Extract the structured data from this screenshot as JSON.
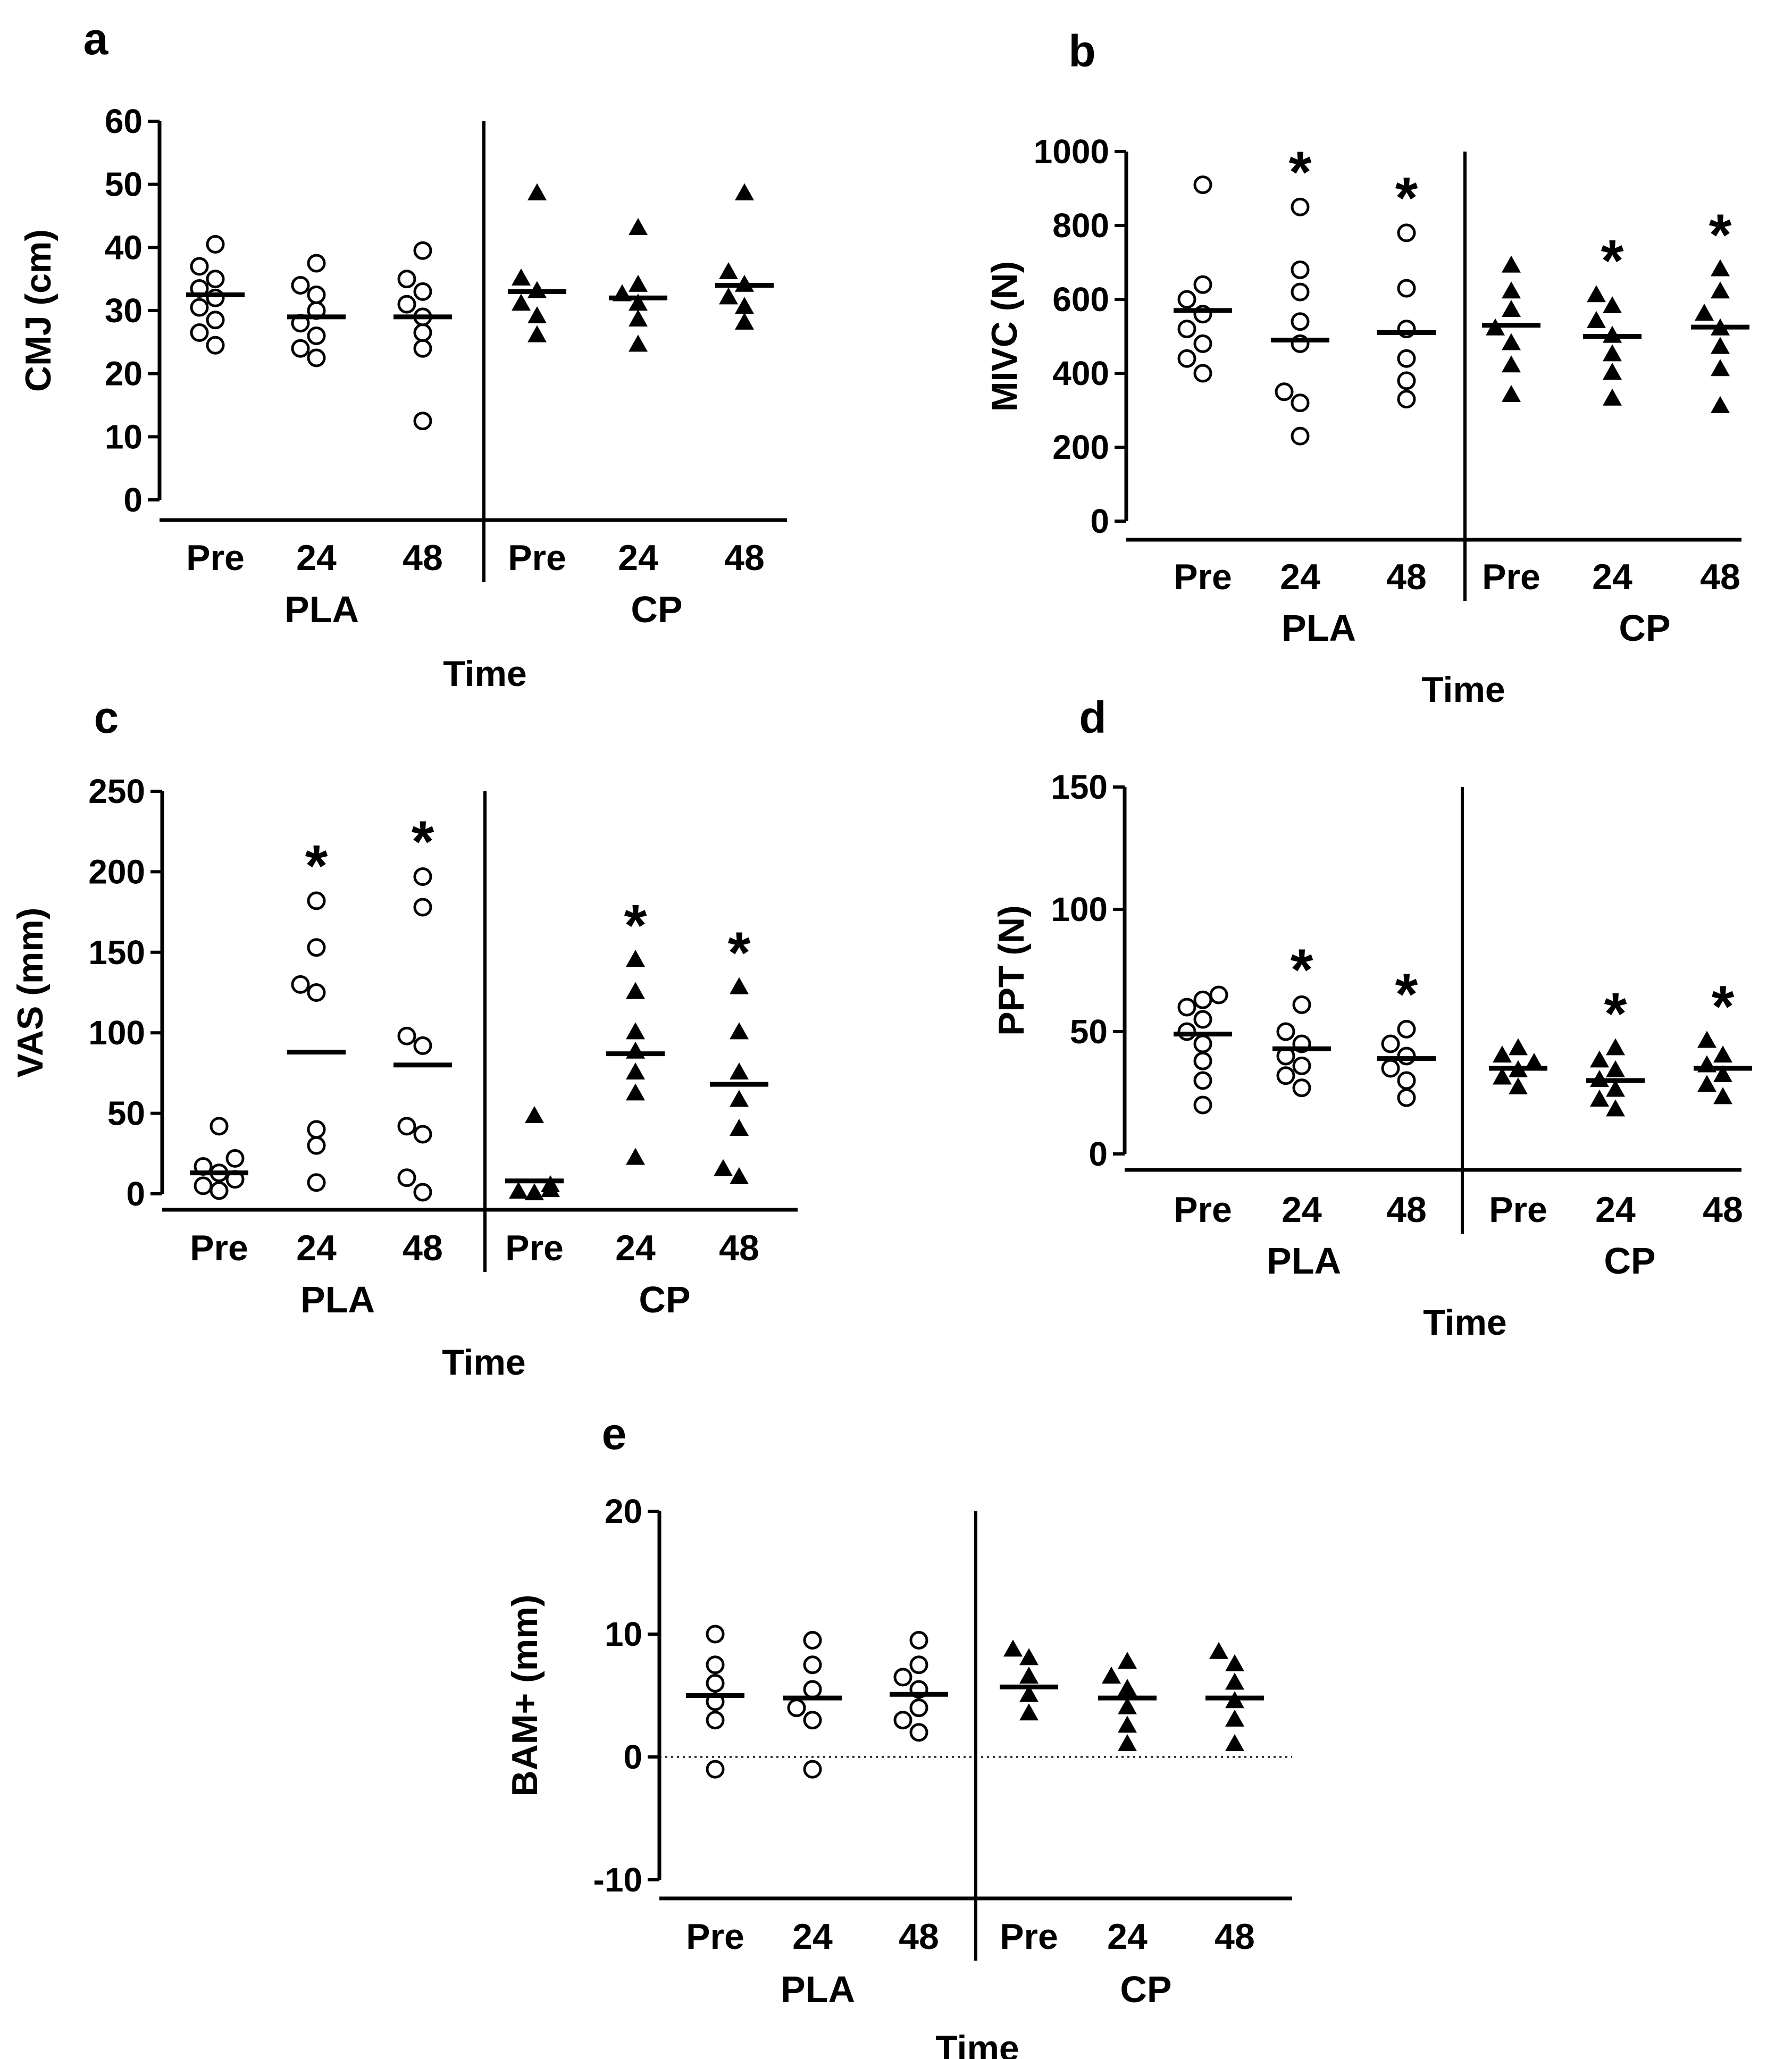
{
  "figure": {
    "x_axis_title": "Time",
    "categories": [
      "Pre",
      "24",
      "48",
      "Pre",
      "24",
      "48"
    ],
    "groups": [
      "PLA",
      "CP"
    ],
    "marker_styles": [
      "open-circle",
      "filled-triangle"
    ],
    "colors": {
      "ink": "#000000",
      "background": "#ffffff"
    }
  },
  "chart_data": [
    {
      "panel": "a",
      "type": "scatter",
      "ylabel": "CMJ (cm)",
      "xlabel": "Time",
      "ylim": [
        0,
        60
      ],
      "yticks": [
        0,
        10,
        20,
        30,
        40,
        50,
        60
      ],
      "zero_line": false,
      "series": [
        {
          "name": "PLA Pre",
          "group": "PLA",
          "time": "Pre",
          "marker": "open-circle",
          "mean": 32.5,
          "values": [
            24.5,
            26.5,
            28.5,
            30.5,
            32,
            33.5,
            35,
            37,
            40.5
          ],
          "significant": false
        },
        {
          "name": "PLA 24",
          "group": "PLA",
          "time": "24",
          "marker": "open-circle",
          "mean": 29,
          "values": [
            22.5,
            24,
            26,
            28,
            30,
            32.5,
            34,
            37.5
          ],
          "significant": false
        },
        {
          "name": "PLA 48",
          "group": "PLA",
          "time": "48",
          "marker": "open-circle",
          "mean": 29,
          "values": [
            12.5,
            24,
            26.5,
            29,
            31,
            33,
            35,
            39.5
          ],
          "significant": false
        },
        {
          "name": "CP Pre",
          "group": "CP",
          "time": "Pre",
          "marker": "filled-triangle",
          "mean": 33,
          "values": [
            26,
            29,
            31,
            33,
            35,
            48.5
          ],
          "significant": false
        },
        {
          "name": "CP 24",
          "group": "CP",
          "time": "24",
          "marker": "filled-triangle",
          "mean": 32,
          "values": [
            24.5,
            28.5,
            31,
            32.5,
            34,
            43
          ],
          "significant": false
        },
        {
          "name": "CP 48",
          "group": "CP",
          "time": "48",
          "marker": "filled-triangle",
          "mean": 34,
          "values": [
            28,
            30.5,
            32,
            34,
            36,
            48.5
          ],
          "significant": false
        }
      ]
    },
    {
      "panel": "b",
      "type": "scatter",
      "ylabel": "MIVC (N)",
      "xlabel": "Time",
      "ylim": [
        0,
        1000
      ],
      "yticks": [
        0,
        200,
        400,
        600,
        800,
        1000
      ],
      "zero_line": false,
      "series": [
        {
          "name": "PLA Pre",
          "group": "PLA",
          "time": "Pre",
          "marker": "open-circle",
          "mean": 570,
          "values": [
            400,
            440,
            480,
            520,
            560,
            600,
            640,
            910
          ],
          "significant": false
        },
        {
          "name": "PLA 24",
          "group": "PLA",
          "time": "24",
          "marker": "open-circle",
          "mean": 490,
          "values": [
            230,
            320,
            350,
            480,
            540,
            620,
            680,
            850
          ],
          "significant": true
        },
        {
          "name": "PLA 48",
          "group": "PLA",
          "time": "48",
          "marker": "open-circle",
          "mean": 510,
          "values": [
            330,
            380,
            440,
            520,
            630,
            780
          ],
          "significant": true
        },
        {
          "name": "CP Pre",
          "group": "CP",
          "time": "Pre",
          "marker": "filled-triangle",
          "mean": 530,
          "values": [
            340,
            420,
            480,
            520,
            570,
            620,
            690
          ],
          "significant": false
        },
        {
          "name": "CP 24",
          "group": "CP",
          "time": "24",
          "marker": "filled-triangle",
          "mean": 500,
          "values": [
            330,
            400,
            450,
            500,
            540,
            580,
            610
          ],
          "significant": true
        },
        {
          "name": "CP 48",
          "group": "CP",
          "time": "48",
          "marker": "filled-triangle",
          "mean": 525,
          "values": [
            310,
            410,
            470,
            520,
            560,
            620,
            680
          ],
          "significant": true
        }
      ]
    },
    {
      "panel": "c",
      "type": "scatter",
      "ylabel": "VAS (mm)",
      "xlabel": "Time",
      "ylim": [
        0,
        250
      ],
      "yticks": [
        0,
        50,
        100,
        150,
        200,
        250
      ],
      "zero_line": false,
      "series": [
        {
          "name": "PLA Pre",
          "group": "PLA",
          "time": "Pre",
          "marker": "open-circle",
          "mean": 13,
          "values": [
            2,
            5,
            9,
            13,
            17,
            22,
            42
          ],
          "significant": false
        },
        {
          "name": "PLA 24",
          "group": "PLA",
          "time": "24",
          "marker": "open-circle",
          "mean": 88,
          "values": [
            7,
            30,
            40,
            125,
            130,
            153,
            182
          ],
          "significant": true
        },
        {
          "name": "PLA 48",
          "group": "PLA",
          "time": "48",
          "marker": "open-circle",
          "mean": 80,
          "values": [
            1,
            10,
            37,
            42,
            92,
            98,
            178,
            197
          ],
          "significant": true
        },
        {
          "name": "CP Pre",
          "group": "CP",
          "time": "Pre",
          "marker": "filled-triangle",
          "mean": 8,
          "values": [
            0,
            1,
            2,
            5,
            48
          ],
          "significant": false
        },
        {
          "name": "CP 24",
          "group": "CP",
          "time": "24",
          "marker": "filled-triangle",
          "mean": 87,
          "values": [
            22,
            62,
            75,
            88,
            100,
            125,
            145
          ],
          "significant": true
        },
        {
          "name": "CP 48",
          "group": "CP",
          "time": "48",
          "marker": "filled-triangle",
          "mean": 68,
          "values": [
            10,
            15,
            40,
            58,
            75,
            100,
            128
          ],
          "significant": true
        }
      ]
    },
    {
      "panel": "d",
      "type": "scatter",
      "ylabel": "PPT (N)",
      "xlabel": "Time",
      "ylim": [
        0,
        150
      ],
      "yticks": [
        0,
        50,
        100,
        150
      ],
      "zero_line": false,
      "series": [
        {
          "name": "PLA Pre",
          "group": "PLA",
          "time": "Pre",
          "marker": "open-circle",
          "mean": 49,
          "values": [
            20,
            30,
            38,
            45,
            50,
            55,
            60,
            63,
            65
          ],
          "significant": false
        },
        {
          "name": "PLA 24",
          "group": "PLA",
          "time": "24",
          "marker": "open-circle",
          "mean": 43,
          "values": [
            27,
            32,
            36,
            40,
            45,
            50,
            61
          ],
          "significant": true
        },
        {
          "name": "PLA 48",
          "group": "PLA",
          "time": "48",
          "marker": "open-circle",
          "mean": 39,
          "values": [
            23,
            30,
            35,
            40,
            45,
            51
          ],
          "significant": true
        },
        {
          "name": "CP Pre",
          "group": "CP",
          "time": "Pre",
          "marker": "filled-triangle",
          "mean": 35,
          "values": [
            27,
            31,
            34,
            37,
            40,
            43
          ],
          "significant": false
        },
        {
          "name": "CP 24",
          "group": "CP",
          "time": "24",
          "marker": "filled-triangle",
          "mean": 30,
          "values": [
            18,
            22,
            26,
            30,
            34,
            38,
            43
          ],
          "significant": true
        },
        {
          "name": "CP 48",
          "group": "CP",
          "time": "48",
          "marker": "filled-triangle",
          "mean": 35,
          "values": [
            23,
            28,
            32,
            36,
            40,
            46
          ],
          "significant": true
        }
      ]
    },
    {
      "panel": "e",
      "type": "scatter",
      "ylabel": "BAM+ (mm)",
      "xlabel": "Time",
      "ylim": [
        -10,
        20
      ],
      "yticks": [
        -10,
        0,
        10,
        20
      ],
      "zero_line": true,
      "series": [
        {
          "name": "PLA Pre",
          "group": "PLA",
          "time": "Pre",
          "marker": "open-circle",
          "mean": 5,
          "values": [
            -1,
            3,
            4.5,
            6,
            7.5,
            10
          ],
          "significant": false
        },
        {
          "name": "PLA 24",
          "group": "PLA",
          "time": "24",
          "marker": "open-circle",
          "mean": 4.8,
          "values": [
            -1,
            3,
            4,
            5.5,
            7.5,
            9.5
          ],
          "significant": false
        },
        {
          "name": "PLA 48",
          "group": "PLA",
          "time": "48",
          "marker": "open-circle",
          "mean": 5.1,
          "values": [
            2,
            3,
            4,
            5.5,
            6.5,
            7.5,
            9.5
          ],
          "significant": false
        },
        {
          "name": "CP Pre",
          "group": "CP",
          "time": "Pre",
          "marker": "filled-triangle",
          "mean": 5.7,
          "values": [
            3.5,
            5,
            6.5,
            8,
            8.7
          ],
          "significant": false
        },
        {
          "name": "CP 24",
          "group": "CP",
          "time": "24",
          "marker": "filled-triangle",
          "mean": 4.8,
          "values": [
            1,
            2.5,
            4,
            5.5,
            6.5,
            7.7
          ],
          "significant": false
        },
        {
          "name": "CP 48",
          "group": "CP",
          "time": "48",
          "marker": "filled-triangle",
          "mean": 4.8,
          "values": [
            1,
            3,
            4.5,
            6,
            7.5,
            8.5
          ],
          "significant": false
        }
      ]
    }
  ]
}
